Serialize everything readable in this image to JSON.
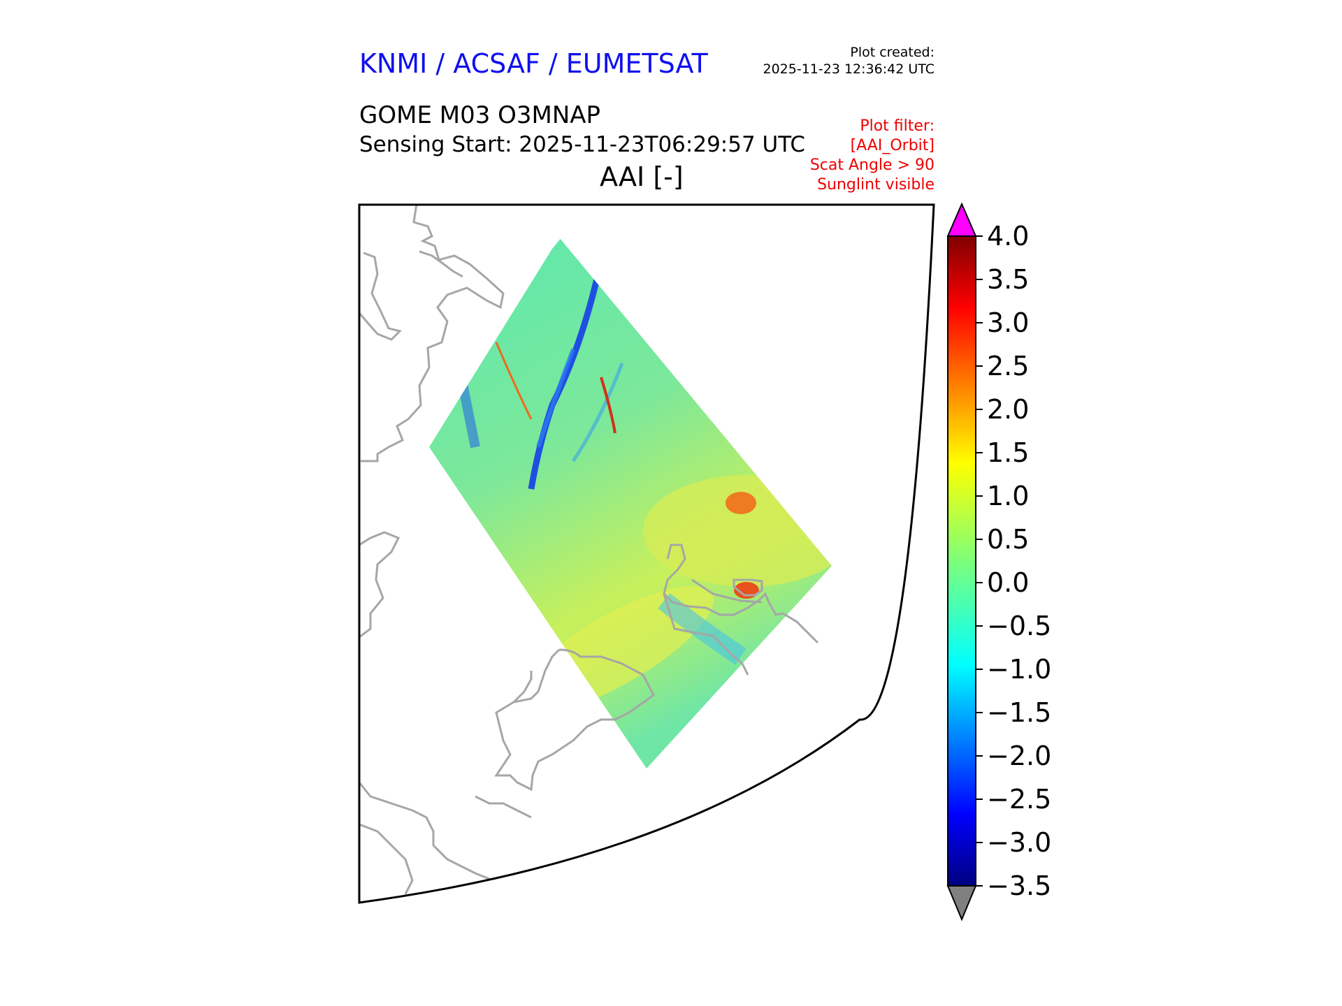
{
  "header": {
    "agency": "KNMI / ACSAF / EUMETSAT",
    "plot_created_label": "Plot created:",
    "plot_created_value": "2025-11-23 12:36:42 UTC",
    "product": "GOME M03 O3MNAP",
    "sensing_start": "Sensing Start: 2025-11-23T06:29:57 UTC",
    "variable": "AAI [-]",
    "plot_filter": {
      "title": "Plot filter:",
      "items": [
        "[AAI_Orbit]",
        "Scat Angle > 90",
        "Sunglint visible"
      ]
    }
  },
  "colors": {
    "agency_text": "#1010ee",
    "filter_text": "#ee0000",
    "coastline": "#a6a6a6",
    "over_range": "#ff00ff",
    "under_range": "#808080"
  },
  "colorbar": {
    "min": -3.5,
    "max": 4.0,
    "extend": "both",
    "ticks": [
      "−3.5",
      "−3.0",
      "−2.5",
      "−2.0",
      "−1.5",
      "−1.0",
      "−0.5",
      "0.0",
      "0.5",
      "1.0",
      "1.5",
      "2.0",
      "2.5",
      "3.0",
      "3.5",
      "4.0"
    ],
    "colormap": "jet"
  }
}
